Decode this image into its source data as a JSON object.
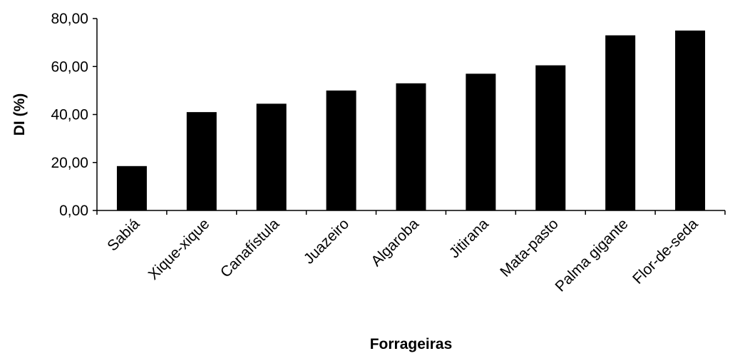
{
  "chart_data": {
    "type": "bar",
    "title": "",
    "xlabel": "Forrageiras",
    "ylabel": "DI (%)",
    "ylim": [
      0,
      80
    ],
    "ytick_values": [
      0,
      20,
      40,
      60,
      80
    ],
    "ytick_labels": [
      "0,00",
      "20,00",
      "40,00",
      "60,00",
      "80,00"
    ],
    "grid": false,
    "legend": "none",
    "bar_color": "#000000",
    "categories": [
      "Sabiá",
      "Xique-xique",
      "Canafístula",
      "Juazeiro",
      "Algaroba",
      "Jitirana",
      "Mata-pasto",
      "Palma gigante",
      "Flor-de-seda"
    ],
    "values": [
      18.5,
      41,
      44.5,
      50,
      53,
      57,
      60.5,
      73,
      75
    ]
  }
}
